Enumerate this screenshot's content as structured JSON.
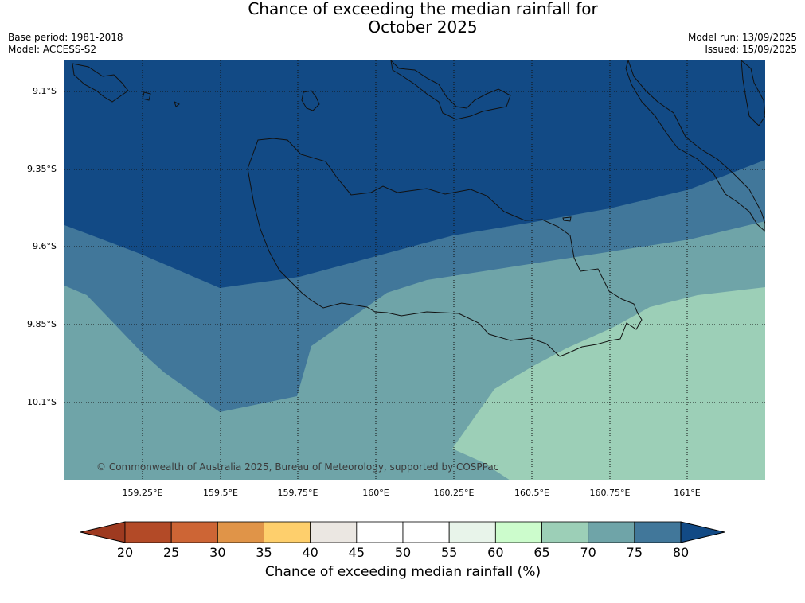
{
  "title_line1": "Chance of exceeding the median rainfall for",
  "title_line2": "October 2025",
  "base_period": "Base period: 1981-2018",
  "model": "Model: ACCESS-S2",
  "model_run": "Model run: 13/09/2025",
  "issued": "Issued: 15/09/2025",
  "copyright": "© Commonwealth of Australia 2025, Bureau of Meteorology, supported by COSPPac",
  "lat_labels": [
    "9.1°S",
    "9.35°S",
    "9.6°S",
    "9.85°S",
    "10.1°S"
  ],
  "lon_labels": [
    "159.25°E",
    "159.5°E",
    "159.75°E",
    "160°E",
    "160.25°E",
    "160.5°E",
    "160.75°E",
    "161°E"
  ],
  "colorbar": {
    "ticks": [
      "20",
      "25",
      "30",
      "35",
      "40",
      "45",
      "50",
      "55",
      "60",
      "65",
      "70",
      "75",
      "80"
    ],
    "colors": [
      "#b34a27",
      "#cd6535",
      "#e09448",
      "#fecf6c",
      "#ebe7e2",
      "#ffffff",
      "#ffffff",
      "#e8f4ea",
      "#ccfccc",
      "#9ccfb7",
      "#6fa4a8",
      "#41779a"
    ],
    "low_color": "#9e3a20",
    "high_color": "#124a85",
    "label": "Chance of exceeding median rainfall (%)"
  },
  "chart_data": {
    "type": "heatmap",
    "title": "Chance of exceeding the median rainfall for October 2025",
    "variable": "Chance of exceeding median rainfall (%)",
    "lat_range": [
      "9.0°S",
      "10.3°S"
    ],
    "lon_range": [
      "159.0°E",
      "161.25°E"
    ],
    "bins_shown": [
      "65-70",
      "70-75",
      "75-80",
      ">80"
    ],
    "gridlines": true
  }
}
